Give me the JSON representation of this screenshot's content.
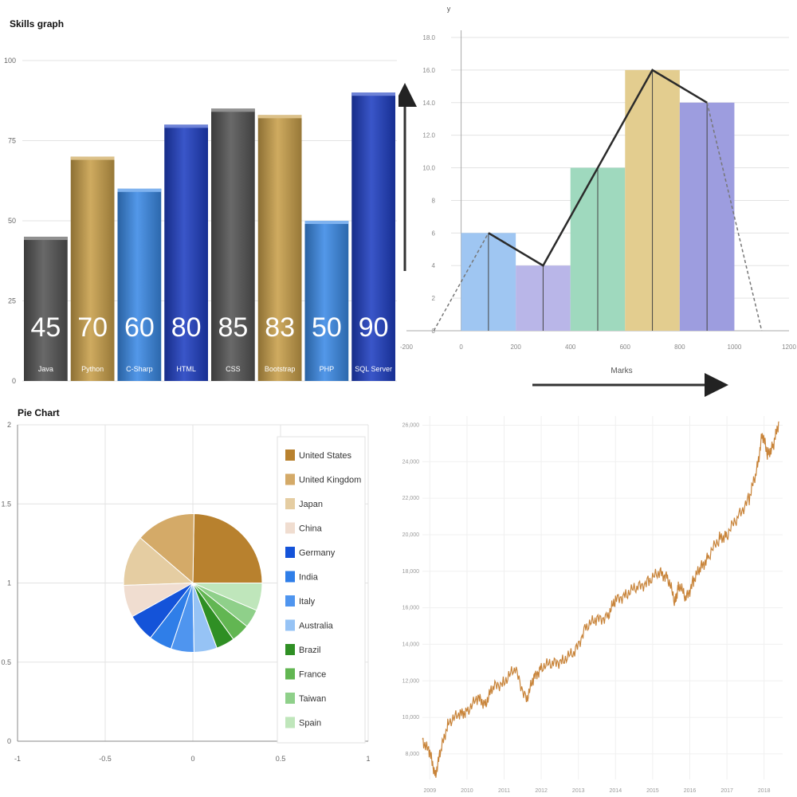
{
  "chart_data": [
    {
      "type": "bar",
      "title": "Skills graph",
      "categories": [
        "Java",
        "Python",
        "C-Sharp",
        "HTML",
        "CSS",
        "Bootstrap",
        "PHP",
        "SQL Server"
      ],
      "values": [
        45,
        70,
        60,
        80,
        85,
        83,
        50,
        90
      ],
      "bar_colors": [
        "#555555",
        "#c9a04a",
        "#3b8ae6",
        "#1f3fc2",
        "#555555",
        "#c9a04a",
        "#3b8ae6",
        "#1f3fc2"
      ],
      "ylim": [
        0,
        100
      ],
      "yticks": [
        0,
        25,
        50,
        75,
        100
      ],
      "grid": true
    },
    {
      "type": "bar",
      "subtype": "histogram-with-frequency-polygon",
      "xlabel": "Marks",
      "ylabel": "y",
      "xticks": [
        "-200",
        "0",
        "200",
        "400",
        "600",
        "800",
        "1000",
        "1200"
      ],
      "yticks": [
        "0",
        "2",
        "4",
        "6",
        "8",
        "10.0",
        "12.0",
        "14.0",
        "16.0",
        "18.0"
      ],
      "ylim": [
        0,
        18
      ],
      "bins": [
        {
          "start": 0,
          "end": 200,
          "value": 6,
          "color": "#9fc6f2"
        },
        {
          "start": 200,
          "end": 400,
          "value": 4,
          "color": "#b9b6e8"
        },
        {
          "start": 400,
          "end": 600,
          "value": 10,
          "color": "#9fd9be"
        },
        {
          "start": 600,
          "end": 800,
          "value": 16,
          "color": "#e3cd8f"
        },
        {
          "start": 800,
          "end": 1000,
          "value": 14,
          "color": "#9d9ddf"
        }
      ],
      "polygon": {
        "x": [
          100,
          300,
          500,
          700,
          900
        ],
        "y": [
          6,
          4,
          10,
          16,
          14
        ]
      },
      "polygon_ends": {
        "x": [
          -100,
          1100
        ],
        "y": [
          0,
          0
        ]
      },
      "xlim": [
        -200,
        1200
      ]
    },
    {
      "type": "pie",
      "title": "Pie Chart",
      "labels": [
        "United States",
        "United Kingdom",
        "Japan",
        "China",
        "Germany",
        "India",
        "Italy",
        "Australia",
        "Brazil",
        "France",
        "Taiwan",
        "Spain"
      ],
      "values": [
        23,
        13,
        11,
        7,
        6,
        5,
        5,
        5,
        4,
        4,
        4,
        6
      ],
      "colors": [
        "#b8812e",
        "#d4aa68",
        "#e5cda2",
        "#f0ddd0",
        "#1453d9",
        "#2f7ee8",
        "#4f95ef",
        "#96c3f5",
        "#2f8f24",
        "#62b652",
        "#8fd08a",
        "#bfe6bb"
      ],
      "xlim": [
        -1,
        1
      ],
      "ylim": [
        0,
        2
      ],
      "xticks": [
        "-1",
        "-0.5",
        "0",
        "0.5",
        "1"
      ],
      "yticks": [
        "0",
        "0.5",
        "1",
        "1.5",
        "2"
      ],
      "legend_position": "right"
    },
    {
      "type": "line",
      "color": "#c8843a",
      "yticks": [
        "8,000",
        "10,000",
        "12,000",
        "14,000",
        "16,000",
        "18,000",
        "20,000",
        "22,000",
        "24,000",
        "26,000"
      ],
      "xticks": [
        "2009",
        "2010",
        "2011",
        "2012",
        "2013",
        "2014",
        "2015",
        "2016",
        "2017",
        "2018"
      ],
      "ylim": [
        6600,
        26500
      ],
      "xlim": [
        2008.8,
        2018.5
      ],
      "x": [
        2008.8,
        2009.0,
        2009.15,
        2009.3,
        2009.5,
        2009.8,
        2010.0,
        2010.3,
        2010.5,
        2010.7,
        2011.0,
        2011.3,
        2011.6,
        2011.8,
        2012.0,
        2012.3,
        2012.6,
        2012.9,
        2013.2,
        2013.5,
        2013.8,
        2014.0,
        2014.3,
        2014.6,
        2014.9,
        2015.2,
        2015.4,
        2015.6,
        2015.7,
        2015.9,
        2016.1,
        2016.3,
        2016.5,
        2016.8,
        2017.0,
        2017.3,
        2017.6,
        2017.8,
        2017.95,
        2018.1,
        2018.25,
        2018.4
      ],
      "y": [
        8800,
        8000,
        6900,
        8200,
        9800,
        10100,
        10400,
        11000,
        10800,
        11600,
        12000,
        12600,
        11000,
        12100,
        12800,
        12900,
        13200,
        13500,
        15000,
        15300,
        15600,
        16400,
        16800,
        17100,
        17500,
        17900,
        17700,
        16300,
        17300,
        16500,
        17500,
        18200,
        18800,
        19800,
        20000,
        21000,
        22000,
        23500,
        25500,
        24400,
        24900,
        26200
      ]
    }
  ]
}
